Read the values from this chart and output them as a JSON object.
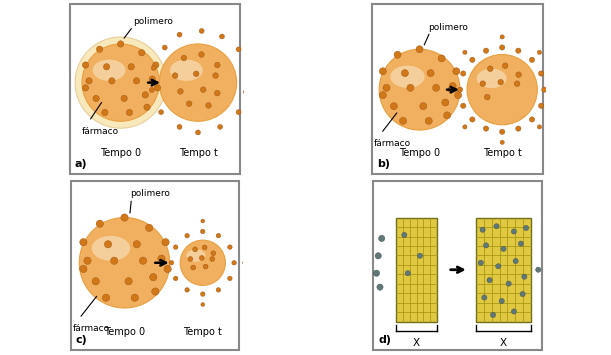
{
  "bg_color": "#ffffff",
  "orange_light": "#F5C870",
  "orange_mid": "#F0A030",
  "orange_dark": "#D07010",
  "orange_sphere_fill": "#F0B060",
  "orange_sphere_edge": "#E8A040",
  "orange_outer_ring": "#F5D090",
  "dot_orange": "#D07818",
  "dot_orange_small": "#CC8820",
  "yellow_grid": "#E0C840",
  "yellow_grid_line": "#A09010",
  "grey_dot": "#607878",
  "grey_dot_edge": "#405050",
  "labels": {
    "polimero": "polimero",
    "farmaco": "fármaco",
    "tempo0": "Tempo 0",
    "tempot": "Tempo t",
    "X": "X"
  },
  "panel_labels": [
    "a)",
    "b)",
    "c)",
    "d)"
  ]
}
